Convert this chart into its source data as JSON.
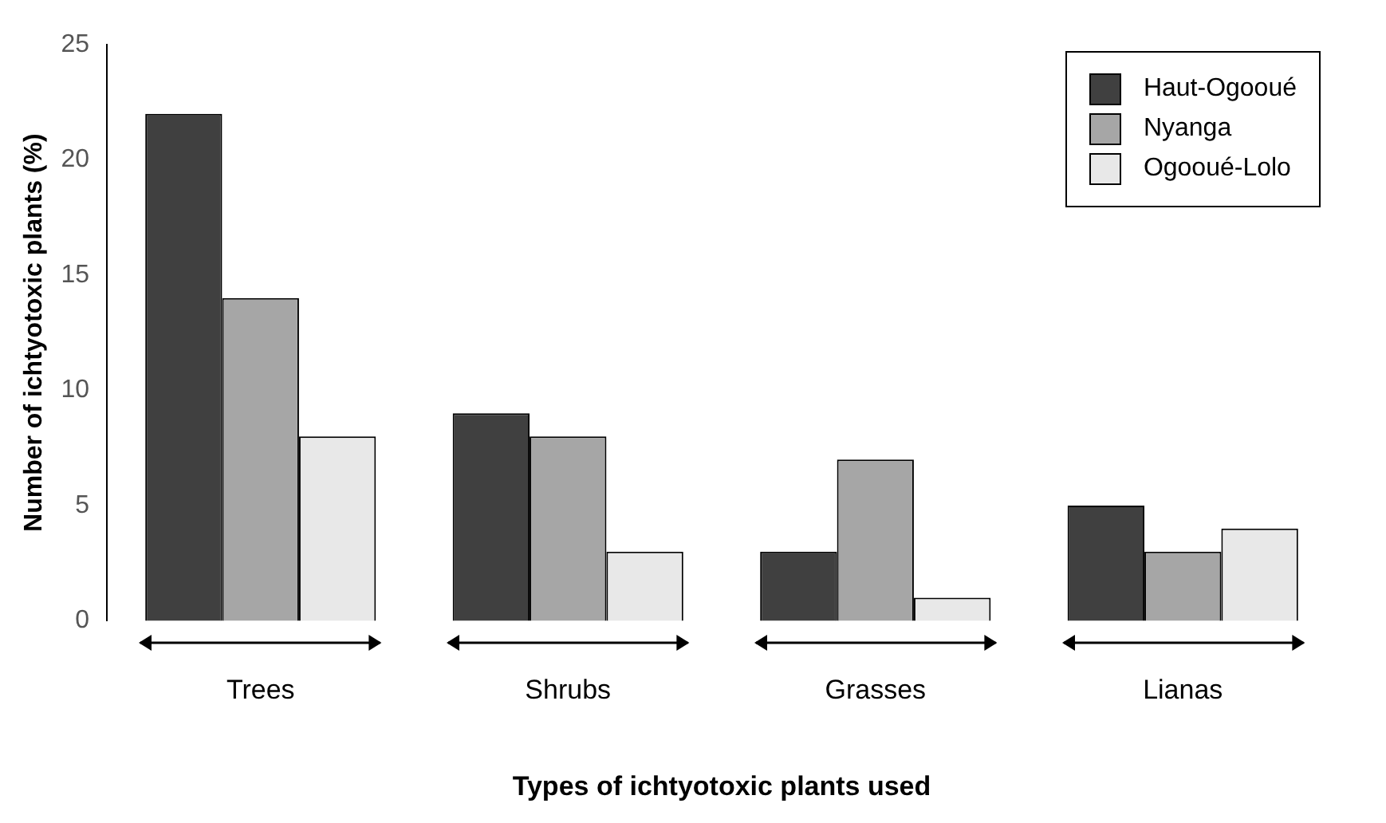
{
  "chart_data": {
    "type": "bar",
    "xlabel": "Types of ichtyotoxic plants used",
    "ylabel": "Number of ichtyotoxic plants (%)",
    "categories": [
      "Trees",
      "Shrubs",
      "Grasses",
      "Lianas"
    ],
    "series": [
      {
        "name": "Haut-Ogooué",
        "color": "#404040",
        "values": [
          22,
          9,
          3,
          5
        ]
      },
      {
        "name": "Nyanga",
        "color": "#a6a6a6",
        "values": [
          14,
          8,
          7,
          3
        ]
      },
      {
        "name": "Ogooué-Lolo",
        "color": "#e8e8e8",
        "values": [
          8,
          3,
          1,
          4
        ]
      }
    ],
    "ylim": [
      0,
      25
    ],
    "yticks": [
      0,
      5,
      10,
      15,
      20,
      25
    ],
    "grid": false,
    "legend": "top right"
  }
}
